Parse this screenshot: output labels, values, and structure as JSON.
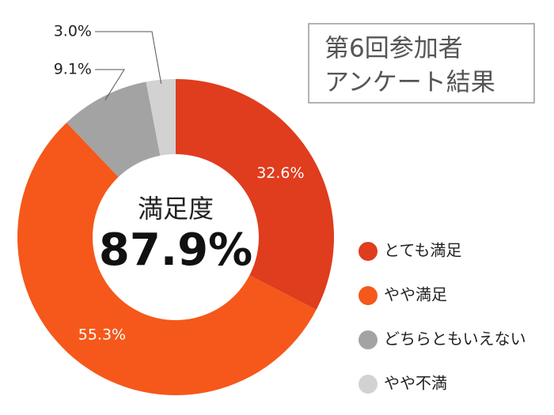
{
  "chart_data": {
    "type": "donut",
    "title": [
      "第6回参加者",
      "アンケート結果"
    ],
    "center_label": "満足度",
    "center_value": {
      "value": 87.9,
      "label": "87.9%"
    },
    "categories": [
      "とても満足",
      "やや満足",
      "どちらともいえない",
      "やや不満"
    ],
    "values": [
      32.6,
      55.3,
      9.1,
      3.0
    ],
    "value_labels": [
      "32.6%",
      "55.3%",
      "9.1%",
      "3.0%"
    ],
    "colors": [
      "#e03c1e",
      "#f5581a",
      "#a3a3a3",
      "#d2d2d2"
    ],
    "legend": "right"
  }
}
